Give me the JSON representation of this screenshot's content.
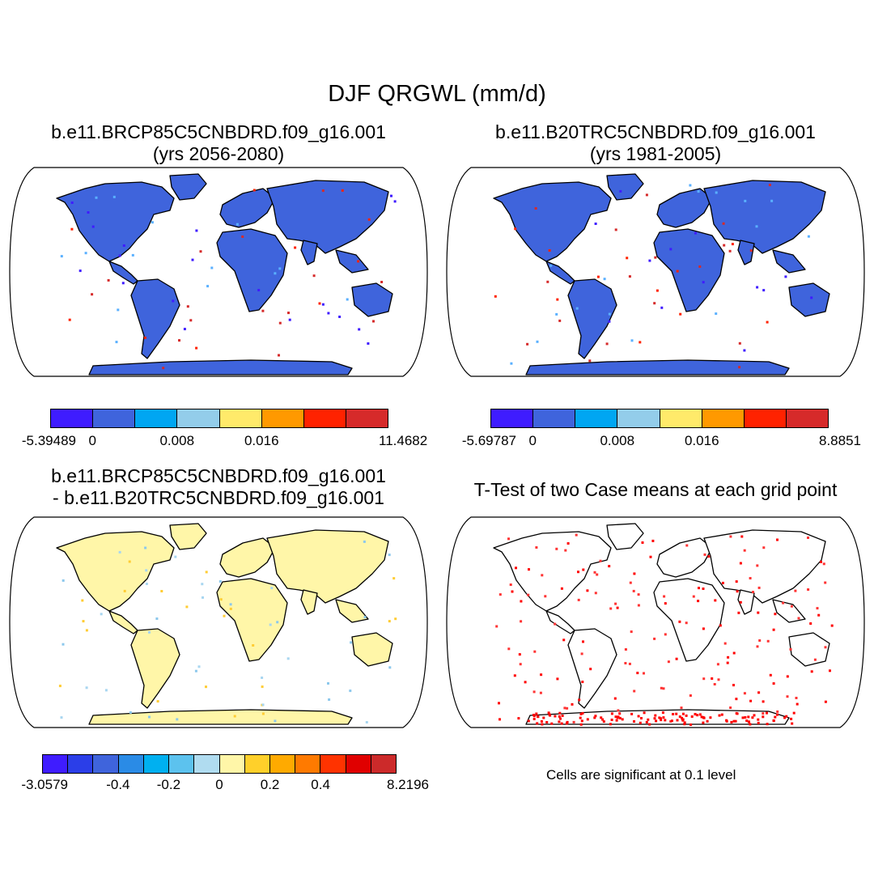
{
  "figure": {
    "title": "DJF QRGWL (mm/d)"
  },
  "panels": [
    {
      "id": "case1",
      "title_line1": "b.e11.BRCP85C5CNBDRD.f09_g16.001",
      "title_line2": "(yrs 2056-2080)",
      "land_color": "#3f64dc",
      "colorbar": {
        "colors": [
          "#3f1cff",
          "#3f64dc",
          "#00a6f2",
          "#93cdea",
          "#ffea6a",
          "#ff9900",
          "#ff2200",
          "#d62a2a"
        ],
        "labels": [
          "-5.39489",
          "0",
          "0.008",
          "0.016",
          "11.4682"
        ]
      }
    },
    {
      "id": "case2",
      "title_line1": "b.e11.B20TRC5CNBDRD.f09_g16.001",
      "title_line2": "(yrs 1981-2005)",
      "land_color": "#3f64dc",
      "colorbar": {
        "colors": [
          "#3f1cff",
          "#3f64dc",
          "#00a6f2",
          "#93cdea",
          "#ffea6a",
          "#ff9900",
          "#ff2200",
          "#d62a2a"
        ],
        "labels": [
          "-5.69787",
          "0",
          "0.008",
          "0.016",
          "8.8851"
        ]
      }
    },
    {
      "id": "difference",
      "title_line1": "b.e11.BRCP85C5CNBDRD.f09_g16.001",
      "title_line2": "- b.e11.B20TRC5CNBDRD.f09_g16.001",
      "land_color": "#fff6a8",
      "colorbar": {
        "colors": [
          "#3f1cff",
          "#2b3ee8",
          "#3f64dc",
          "#2a8be6",
          "#00b0f0",
          "#5cc2ee",
          "#b0dcf0",
          "#fff6a8",
          "#ffd02a",
          "#ffaa00",
          "#ff7a00",
          "#ff3300",
          "#e00000",
          "#cc2a2a"
        ],
        "labels": [
          "-3.0579",
          "-0.4",
          "-0.2",
          "0",
          "0.2",
          "0.4",
          "8.2196"
        ]
      }
    },
    {
      "id": "ttest",
      "title_line1": "T-Test of two Case means at each grid point",
      "land_color": "#ffffff",
      "note": "Cells are significant at 0.1 level"
    }
  ]
}
